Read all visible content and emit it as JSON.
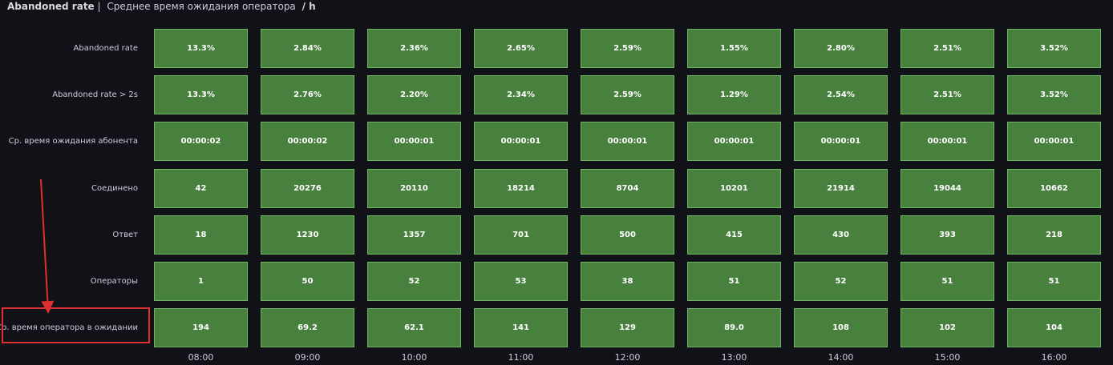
{
  "header": {
    "title": "Abandoned rate",
    "separator": "|",
    "subtitle": "Среднее время ожидания оператора",
    "unit": "/ h"
  },
  "table": {
    "columns": [
      "08:00",
      "09:00",
      "10:00",
      "11:00",
      "12:00",
      "13:00",
      "14:00",
      "15:00",
      "16:00"
    ],
    "row_labels": [
      "Abandoned rate",
      "Abandoned rate > 2s",
      "Ср. время ожидания абонента",
      "Соединено",
      "Ответ",
      "Операторы",
      "Ср. время оператора в ожидании"
    ],
    "rows": [
      [
        "13.3%",
        "2.84%",
        "2.36%",
        "2.65%",
        "2.59%",
        "1.55%",
        "2.80%",
        "2.51%",
        "3.52%"
      ],
      [
        "13.3%",
        "2.76%",
        "2.20%",
        "2.34%",
        "2.59%",
        "1.29%",
        "2.54%",
        "2.51%",
        "3.52%"
      ],
      [
        "00:00:02",
        "00:00:02",
        "00:00:01",
        "00:00:01",
        "00:00:01",
        "00:00:01",
        "00:00:01",
        "00:00:01",
        "00:00:01"
      ],
      [
        "42",
        "20276",
        "20110",
        "18214",
        "8704",
        "10201",
        "21914",
        "19044",
        "10662"
      ],
      [
        "18",
        "1230",
        "1357",
        "701",
        "500",
        "415",
        "430",
        "393",
        "218"
      ],
      [
        "1",
        "50",
        "52",
        "53",
        "38",
        "51",
        "52",
        "51",
        "51"
      ],
      [
        "194",
        "69.2",
        "62.1",
        "141",
        "129",
        "89.0",
        "108",
        "102",
        "104"
      ]
    ]
  }
}
